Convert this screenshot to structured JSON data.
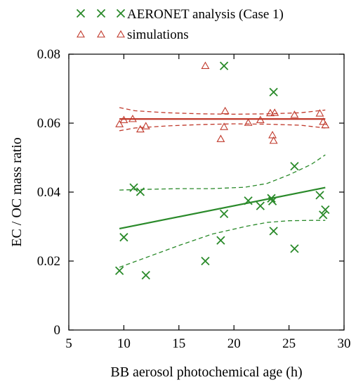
{
  "chart_data": {
    "type": "scatter",
    "xlabel": "BB aerosol photochemical age (h)",
    "ylabel": "EC / OC mass ratio",
    "xlim": [
      5,
      30
    ],
    "ylim": [
      0,
      0.08
    ],
    "xticks": [
      5,
      10,
      15,
      20,
      25,
      30
    ],
    "yticks": [
      0,
      0.02,
      0.04,
      0.06,
      0.08
    ],
    "xtick_labels": [
      "5",
      "10",
      "15",
      "20",
      "25",
      "30"
    ],
    "ytick_labels": [
      "0",
      "0.02",
      "0.04",
      "0.06",
      "0.08"
    ],
    "grid": false,
    "legend_position": "top-left",
    "series": [
      {
        "name": "AERONET analysis (Case 1)",
        "color": "#2a8a2a",
        "marker": "x-cross",
        "points": [
          [
            9.6,
            0.0172
          ],
          [
            10.0,
            0.0269
          ],
          [
            10.9,
            0.0413
          ],
          [
            11.5,
            0.0401
          ],
          [
            12.0,
            0.0159
          ],
          [
            17.4,
            0.02
          ],
          [
            18.8,
            0.026
          ],
          [
            19.1,
            0.0337
          ],
          [
            21.3,
            0.0375
          ],
          [
            22.4,
            0.036
          ],
          [
            23.4,
            0.0382
          ],
          [
            23.5,
            0.0374
          ],
          [
            23.6,
            0.0287
          ],
          [
            25.5,
            0.0236
          ],
          [
            25.5,
            0.0475
          ],
          [
            27.8,
            0.0391
          ],
          [
            28.1,
            0.0334
          ],
          [
            28.3,
            0.0349
          ],
          [
            19.1,
            0.0766
          ],
          [
            23.6,
            0.069
          ]
        ],
        "fit": [
          [
            9.6,
            0.0294
          ],
          [
            28.3,
            0.0413
          ]
        ],
        "ci_upper": [
          [
            9.6,
            0.0406
          ],
          [
            12,
            0.0408
          ],
          [
            15,
            0.041
          ],
          [
            18,
            0.041
          ],
          [
            21,
            0.0414
          ],
          [
            23,
            0.0425
          ],
          [
            25,
            0.045
          ],
          [
            27,
            0.048
          ],
          [
            28.3,
            0.0508
          ]
        ],
        "ci_lower": [
          [
            9.6,
            0.0182
          ],
          [
            12,
            0.021
          ],
          [
            15,
            0.0245
          ],
          [
            18,
            0.0278
          ],
          [
            21,
            0.03
          ],
          [
            23,
            0.0312
          ],
          [
            25,
            0.0317
          ],
          [
            27,
            0.0318
          ],
          [
            28.3,
            0.0318
          ]
        ]
      },
      {
        "name": "simulations",
        "color": "#c0392b",
        "marker": "triangle-open",
        "points": [
          [
            9.6,
            0.0597
          ],
          [
            10.0,
            0.0609
          ],
          [
            10.8,
            0.0612
          ],
          [
            11.5,
            0.0582
          ],
          [
            12.0,
            0.0591
          ],
          [
            17.4,
            0.0766
          ],
          [
            18.8,
            0.0554
          ],
          [
            19.1,
            0.0589
          ],
          [
            19.2,
            0.0635
          ],
          [
            21.3,
            0.0601
          ],
          [
            22.4,
            0.0609
          ],
          [
            23.3,
            0.0629
          ],
          [
            23.5,
            0.0565
          ],
          [
            23.6,
            0.0549
          ],
          [
            23.7,
            0.063
          ],
          [
            25.5,
            0.0624
          ],
          [
            27.8,
            0.0628
          ],
          [
            28.1,
            0.0604
          ],
          [
            28.3,
            0.0594
          ]
        ],
        "fit": [
          [
            9.6,
            0.0612
          ],
          [
            28.3,
            0.0612
          ]
        ],
        "ci_upper": [
          [
            9.6,
            0.0645
          ],
          [
            11,
            0.0636
          ],
          [
            14,
            0.063
          ],
          [
            17,
            0.0627
          ],
          [
            20,
            0.0626
          ],
          [
            23,
            0.0627
          ],
          [
            26,
            0.063
          ],
          [
            28.3,
            0.0638
          ]
        ],
        "ci_lower": [
          [
            9.6,
            0.0578
          ],
          [
            11,
            0.0586
          ],
          [
            14,
            0.0592
          ],
          [
            17,
            0.0596
          ],
          [
            20,
            0.0598
          ],
          [
            23,
            0.0597
          ],
          [
            26,
            0.0594
          ],
          [
            28.3,
            0.0586
          ]
        ]
      }
    ]
  }
}
